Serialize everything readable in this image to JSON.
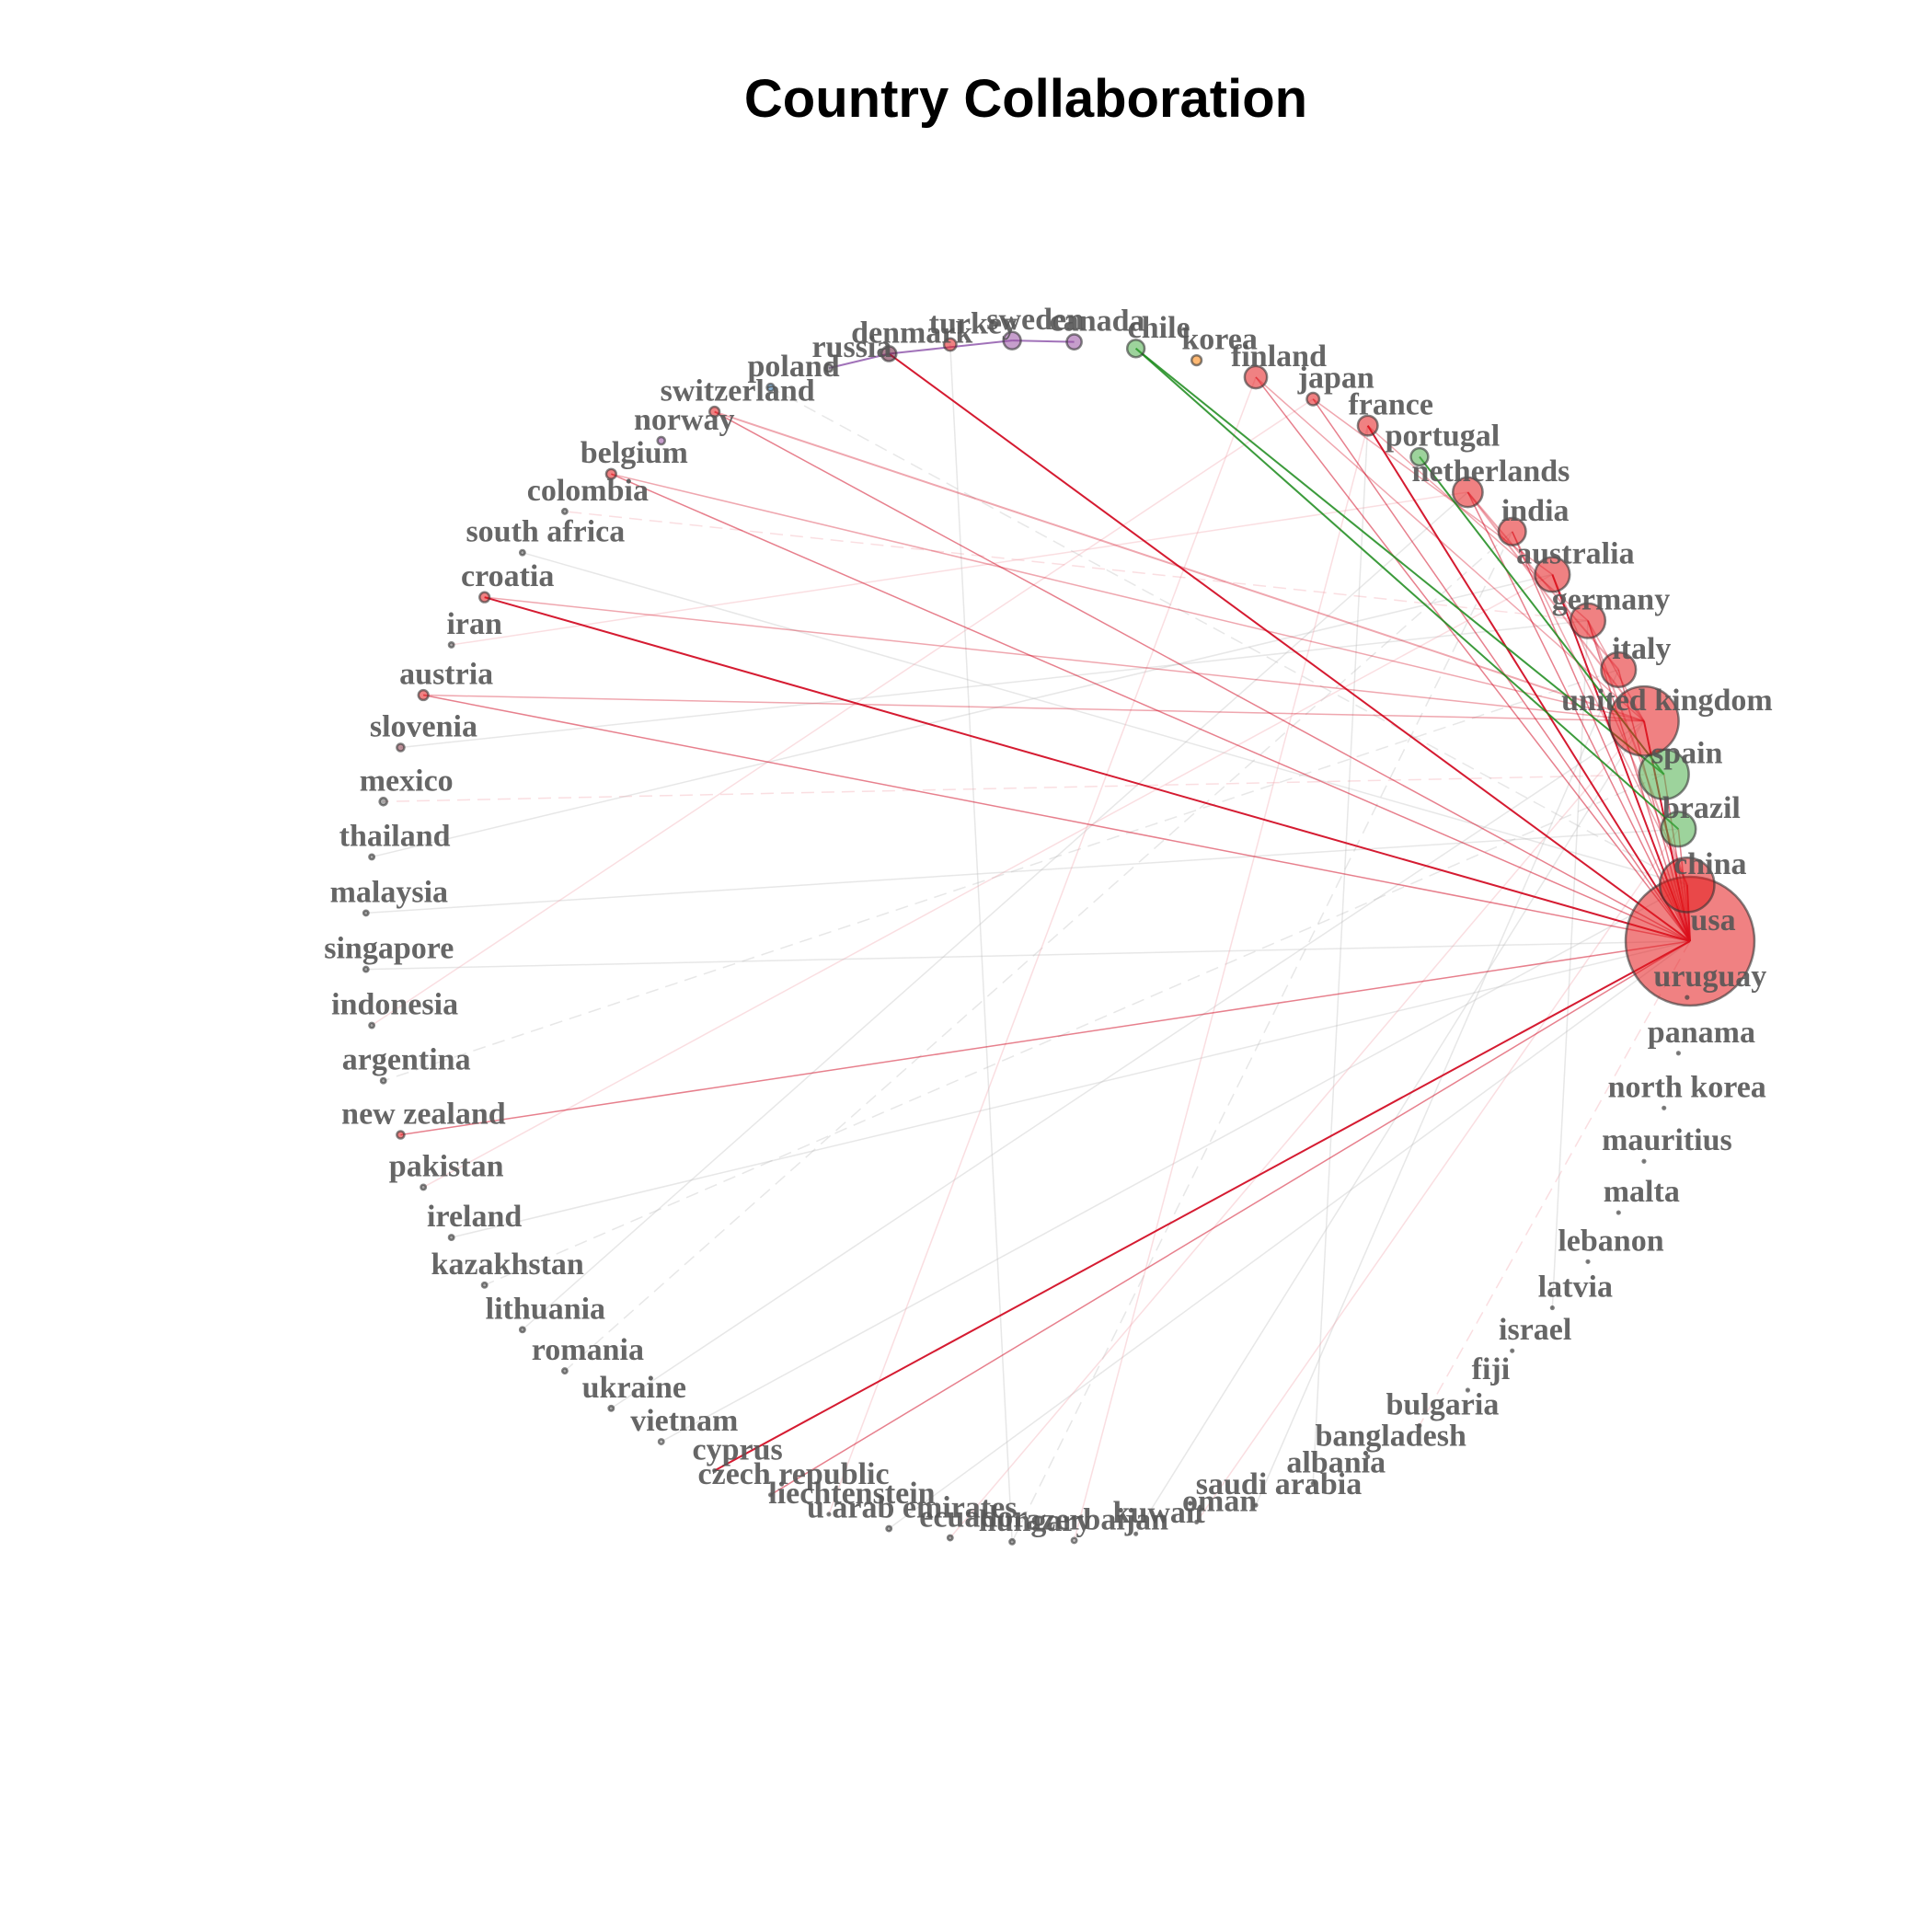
{
  "title": "Country Collaboration",
  "nodes": [
    {
      "label": "usa",
      "color": "#e41a1c",
      "size": 52
    },
    {
      "label": "china",
      "color": "#e41a1c",
      "size": 22
    },
    {
      "label": "brazil",
      "color": "#4daf4a",
      "size": 14
    },
    {
      "label": "spain",
      "color": "#4daf4a",
      "size": 20
    },
    {
      "label": "united kingdom",
      "color": "#e41a1c",
      "size": 28
    },
    {
      "label": "italy",
      "color": "#e41a1c",
      "size": 14
    },
    {
      "label": "germany",
      "color": "#e41a1c",
      "size": 14
    },
    {
      "label": "australia",
      "color": "#e41a1c",
      "size": 14
    },
    {
      "label": "india",
      "color": "#e41a1c",
      "size": 11
    },
    {
      "label": "netherlands",
      "color": "#e41a1c",
      "size": 12
    },
    {
      "label": "portugal",
      "color": "#4daf4a",
      "size": 7
    },
    {
      "label": "france",
      "color": "#e41a1c",
      "size": 8
    },
    {
      "label": "japan",
      "color": "#e41a1c",
      "size": 5
    },
    {
      "label": "finland",
      "color": "#e41a1c",
      "size": 9
    },
    {
      "label": "korea",
      "color": "#ff7f00",
      "size": 4
    },
    {
      "label": "chile",
      "color": "#4daf4a",
      "size": 7
    },
    {
      "label": "canada",
      "color": "#984ea3",
      "size": 6
    },
    {
      "label": "sweden",
      "color": "#984ea3",
      "size": 7
    },
    {
      "label": "turkey",
      "color": "#e41a1c",
      "size": 5
    },
    {
      "label": "denmark",
      "color": "#6a1b3a",
      "size": 6
    },
    {
      "label": "russia",
      "color": "#666666",
      "size": 3
    },
    {
      "label": "poland",
      "color": "#377eb8",
      "size": 3
    },
    {
      "label": "switzerland",
      "color": "#e41a1c",
      "size": 4
    },
    {
      "label": "norway",
      "color": "#984ea3",
      "size": 3
    },
    {
      "label": "belgium",
      "color": "#e41a1c",
      "size": 4
    },
    {
      "label": "colombia",
      "color": "#666666",
      "size": 2
    },
    {
      "label": "south africa",
      "color": "#666666",
      "size": 2
    },
    {
      "label": "croatia",
      "color": "#e41a1c",
      "size": 4
    },
    {
      "label": "iran",
      "color": "#666666",
      "size": 2
    },
    {
      "label": "austria",
      "color": "#e41a1c",
      "size": 4
    },
    {
      "label": "slovenia",
      "color": "#8b3a4a",
      "size": 3
    },
    {
      "label": "mexico",
      "color": "#666666",
      "size": 3
    },
    {
      "label": "thailand",
      "color": "#666666",
      "size": 2
    },
    {
      "label": "malaysia",
      "color": "#666666",
      "size": 2
    },
    {
      "label": "singapore",
      "color": "#666666",
      "size": 2
    },
    {
      "label": "indonesia",
      "color": "#666666",
      "size": 2
    },
    {
      "label": "argentina",
      "color": "#666666",
      "size": 2
    },
    {
      "label": "new zealand",
      "color": "#e41a1c",
      "size": 3
    },
    {
      "label": "pakistan",
      "color": "#666666",
      "size": 2
    },
    {
      "label": "ireland",
      "color": "#666666",
      "size": 2
    },
    {
      "label": "kazakhstan",
      "color": "#666666",
      "size": 2
    },
    {
      "label": "lithuania",
      "color": "#666666",
      "size": 2
    },
    {
      "label": "romania",
      "color": "#666666",
      "size": 2
    },
    {
      "label": "ukraine",
      "color": "#666666",
      "size": 2
    },
    {
      "label": "vietnam",
      "color": "#999999",
      "size": 2
    },
    {
      "label": "cyprus",
      "color": "#999999",
      "size": 1
    },
    {
      "label": "czech republic",
      "color": "#999999",
      "size": 1
    },
    {
      "label": "liechtenstein",
      "color": "#999999",
      "size": 1
    },
    {
      "label": "u arab emirates",
      "color": "#666666",
      "size": 2
    },
    {
      "label": "ecuador",
      "color": "#666666",
      "size": 2
    },
    {
      "label": "hungary",
      "color": "#666666",
      "size": 2
    },
    {
      "label": "azerbaijan",
      "color": "#999999",
      "size": 2
    },
    {
      "label": "kuwait",
      "color": "#999999",
      "size": 1
    },
    {
      "label": "oman",
      "color": "#999999",
      "size": 1
    },
    {
      "label": "saudi arabia",
      "color": "#999999",
      "size": 1
    },
    {
      "label": "albania",
      "color": "#999999",
      "size": 1
    },
    {
      "label": "bangladesh",
      "color": "#999999",
      "size": 1
    },
    {
      "label": "bulgaria",
      "color": "#999999",
      "size": 1
    },
    {
      "label": "fiji",
      "color": "#999999",
      "size": 1
    },
    {
      "label": "israel",
      "color": "#999999",
      "size": 1
    },
    {
      "label": "latvia",
      "color": "#999999",
      "size": 1
    },
    {
      "label": "lebanon",
      "color": "#999999",
      "size": 1
    },
    {
      "label": "malta",
      "color": "#999999",
      "size": 1
    },
    {
      "label": "mauritius",
      "color": "#999999",
      "size": 1
    },
    {
      "label": "north korea",
      "color": "#999999",
      "size": 1
    },
    {
      "label": "panama",
      "color": "#999999",
      "size": 1
    },
    {
      "label": "uruguay",
      "color": "#999999",
      "size": 1
    }
  ]
}
